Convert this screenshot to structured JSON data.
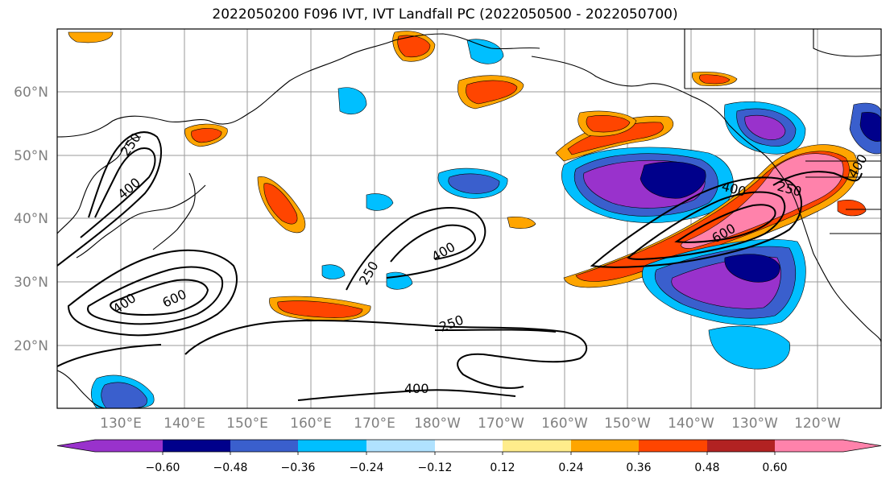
{
  "title": "2022050200 F096 IVT, IVT Landfall PC (2022050500 - 2022050700)",
  "lat_labels": [
    "60°N",
    "50°N",
    "40°N",
    "30°N",
    "20°N"
  ],
  "lon_labels": [
    "130°E",
    "140°E",
    "150°E",
    "160°E",
    "170°E",
    "180°W",
    "170°W",
    "160°W",
    "150°W",
    "140°W",
    "130°W",
    "120°W"
  ],
  "contour_labels": [
    "250",
    "400",
    "400",
    "250",
    "400",
    "600",
    "250",
    "400",
    "400",
    "600",
    "250",
    "400"
  ],
  "colorbar": {
    "colors": [
      "#9932cc",
      "#00008b",
      "#3a5fcd",
      "#00bfff",
      "#b0e2ff",
      "#ffffff",
      "#ffec8b",
      "#ffa500",
      "#ff4500",
      "#b22222",
      "#ff82ab"
    ],
    "tick_labels": [
      "−0.60",
      "−0.48",
      "−0.36",
      "−0.24",
      "−0.12",
      "0.12",
      "0.24",
      "0.36",
      "0.48",
      "0.60"
    ]
  }
}
